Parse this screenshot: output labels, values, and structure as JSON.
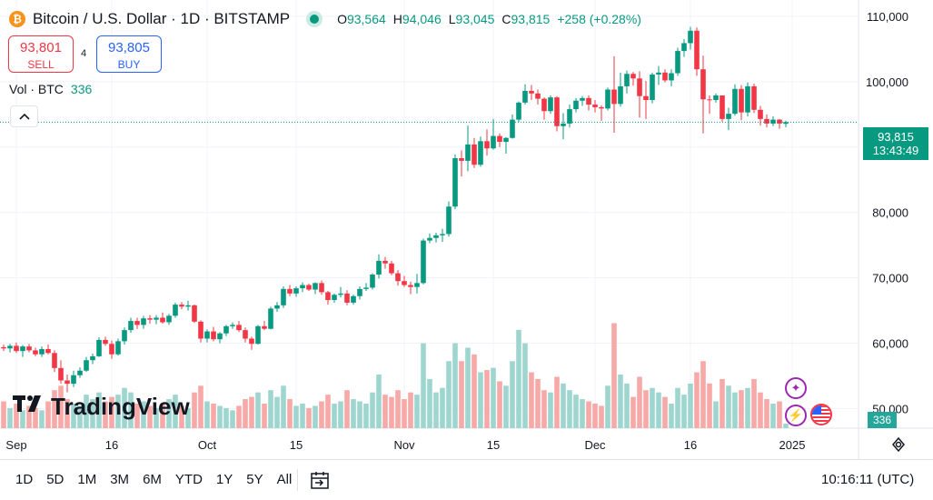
{
  "header": {
    "logo_glyph": "₿",
    "title": "Bitcoin / U.S. Dollar · 1D · BITSTAMP",
    "ohlc": {
      "o_label": "O",
      "o_value": "93,564",
      "h_label": "H",
      "h_value": "94,046",
      "l_label": "L",
      "l_value": "93,045",
      "c_label": "C",
      "c_value": "93,815",
      "change": "+258 (+0.28%)"
    }
  },
  "trade": {
    "sell_price": "93,801",
    "sell_label": "SELL",
    "spread": "4",
    "buy_price": "93,805",
    "buy_label": "BUY"
  },
  "volume_legend": {
    "label": "Vol · BTC",
    "value": "336"
  },
  "watermark": "TradingView",
  "last_price_tag": {
    "price": "93,815",
    "countdown": "13:43:49"
  },
  "volume_tag": "336",
  "ranges": [
    "1D",
    "5D",
    "1M",
    "3M",
    "6M",
    "YTD",
    "1Y",
    "5Y",
    "All"
  ],
  "clock": "10:16:11 (UTC)",
  "colors": {
    "up": "#089981",
    "down": "#f23645",
    "vol_up": "#9ed6cf",
    "vol_down": "#f7a9a7"
  },
  "chart_data": {
    "type": "candlestick",
    "title": "Bitcoin / U.S. Dollar · 1D · BITSTAMP",
    "y_axis": {
      "ticks": [
        50000,
        60000,
        70000,
        80000,
        90000,
        100000,
        110000
      ],
      "tick_labels": [
        "50,000",
        "60,000",
        "70,000",
        "80,000",
        "90,000",
        "100,000",
        "110,000"
      ],
      "range": [
        47000,
        112500
      ]
    },
    "x_axis": {
      "ticks": [
        {
          "label": "Sep",
          "index": 2
        },
        {
          "label": "16",
          "index": 17
        },
        {
          "label": "Oct",
          "index": 32
        },
        {
          "label": "15",
          "index": 46
        },
        {
          "label": "Nov",
          "index": 63
        },
        {
          "label": "15",
          "index": 77
        },
        {
          "label": "Dec",
          "index": 93
        },
        {
          "label": "16",
          "index": 108
        },
        {
          "label": "2025",
          "index": 124
        }
      ]
    },
    "last_price": 93815,
    "candles": [
      [
        59400,
        59800,
        58800,
        59200,
        12
      ],
      [
        59200,
        59900,
        58600,
        59600,
        9
      ],
      [
        59600,
        60100,
        58500,
        58800,
        11
      ],
      [
        58800,
        59700,
        57900,
        59500,
        8
      ],
      [
        59500,
        59900,
        58600,
        58900,
        10
      ],
      [
        58900,
        59300,
        58000,
        58300,
        9
      ],
      [
        58300,
        59500,
        57900,
        59100,
        8
      ],
      [
        59100,
        59800,
        58300,
        58500,
        12
      ],
      [
        58500,
        58900,
        55600,
        56200,
        17
      ],
      [
        56200,
        57400,
        53800,
        54300,
        19
      ],
      [
        54300,
        55200,
        52500,
        53800,
        13
      ],
      [
        53800,
        55800,
        53300,
        55100,
        11
      ],
      [
        55100,
        56300,
        54700,
        55800,
        10
      ],
      [
        55800,
        57900,
        55600,
        57400,
        15
      ],
      [
        57400,
        58400,
        56800,
        58000,
        13
      ],
      [
        58000,
        60900,
        57900,
        60500,
        16
      ],
      [
        60500,
        61000,
        59600,
        59900,
        12
      ],
      [
        59900,
        60400,
        57600,
        58300,
        14
      ],
      [
        58300,
        60700,
        58100,
        60300,
        15
      ],
      [
        60300,
        62400,
        59800,
        62000,
        18
      ],
      [
        62000,
        63900,
        61600,
        63400,
        16
      ],
      [
        63400,
        63900,
        62200,
        62800,
        11
      ],
      [
        62800,
        64200,
        62200,
        63800,
        12
      ],
      [
        63800,
        64300,
        63000,
        63600,
        10
      ],
      [
        63600,
        64300,
        62900,
        63900,
        9
      ],
      [
        63900,
        64700,
        63000,
        63200,
        11
      ],
      [
        63200,
        64500,
        62800,
        64200,
        13
      ],
      [
        64200,
        66200,
        63900,
        65900,
        15
      ],
      [
        65900,
        66300,
        65200,
        65600,
        10
      ],
      [
        65600,
        66500,
        65000,
        65800,
        9
      ],
      [
        65800,
        65900,
        63100,
        63300,
        16
      ],
      [
        63300,
        63500,
        60100,
        60700,
        19
      ],
      [
        60700,
        62100,
        60100,
        61800,
        12
      ],
      [
        61800,
        62500,
        60300,
        60600,
        11
      ],
      [
        60600,
        61700,
        60000,
        61500,
        10
      ],
      [
        61500,
        62800,
        61100,
        62600,
        9
      ],
      [
        62600,
        63200,
        62200,
        62800,
        8
      ],
      [
        62800,
        63400,
        61700,
        62000,
        10
      ],
      [
        62000,
        62400,
        60100,
        60700,
        13
      ],
      [
        60700,
        61000,
        59000,
        59900,
        14
      ],
      [
        59900,
        62800,
        59800,
        62600,
        16
      ],
      [
        62600,
        63400,
        62000,
        62200,
        11
      ],
      [
        62200,
        65600,
        62100,
        65300,
        17
      ],
      [
        65300,
        66300,
        64800,
        65800,
        14
      ],
      [
        65800,
        68700,
        65400,
        68300,
        19
      ],
      [
        68300,
        68900,
        67200,
        67600,
        13
      ],
      [
        67600,
        68700,
        67100,
        68400,
        10
      ],
      [
        68400,
        69300,
        67800,
        68900,
        11
      ],
      [
        68900,
        69100,
        68000,
        68200,
        9
      ],
      [
        68200,
        69300,
        67500,
        69200,
        10
      ],
      [
        69200,
        69600,
        67400,
        67800,
        12
      ],
      [
        67800,
        68000,
        65900,
        66600,
        15
      ],
      [
        66600,
        67600,
        66200,
        67400,
        11
      ],
      [
        67400,
        68600,
        67000,
        67600,
        12
      ],
      [
        67600,
        68100,
        65800,
        66200,
        17
      ],
      [
        66200,
        67400,
        65900,
        67200,
        13
      ],
      [
        67200,
        68700,
        66700,
        68300,
        12
      ],
      [
        68300,
        69200,
        68000,
        68500,
        11
      ],
      [
        68500,
        70700,
        68200,
        70500,
        16
      ],
      [
        70500,
        73600,
        69900,
        72600,
        24
      ],
      [
        72600,
        73200,
        71400,
        72200,
        15
      ],
      [
        72200,
        72600,
        70400,
        70700,
        14
      ],
      [
        70700,
        71200,
        68800,
        69500,
        17
      ],
      [
        69500,
        70300,
        68600,
        68900,
        13
      ],
      [
        68900,
        69400,
        67500,
        68600,
        16
      ],
      [
        68600,
        70600,
        67600,
        69200,
        15
      ],
      [
        69200,
        76000,
        69000,
        75700,
        38
      ],
      [
        75700,
        76800,
        75300,
        76100,
        22
      ],
      [
        76100,
        76900,
        75400,
        76500,
        16
      ],
      [
        76500,
        77500,
        75500,
        76700,
        18
      ],
      [
        76700,
        81700,
        76300,
        80900,
        30
      ],
      [
        80900,
        88900,
        80500,
        88300,
        38
      ],
      [
        88300,
        89500,
        85500,
        87900,
        30
      ],
      [
        87900,
        93300,
        86300,
        90400,
        36
      ],
      [
        90400,
        91400,
        86800,
        87300,
        33
      ],
      [
        87300,
        91600,
        87000,
        90900,
        25
      ],
      [
        90900,
        92700,
        88700,
        89800,
        26
      ],
      [
        89800,
        94300,
        89600,
        91700,
        27
      ],
      [
        91700,
        92100,
        90000,
        90800,
        21
      ],
      [
        90800,
        91500,
        89000,
        91400,
        19
      ],
      [
        91400,
        95000,
        91300,
        94200,
        30
      ],
      [
        94200,
        97000,
        93800,
        96800,
        44
      ],
      [
        96800,
        99600,
        96500,
        98600,
        38
      ],
      [
        98600,
        99500,
        97200,
        98200,
        25
      ],
      [
        98200,
        98800,
        96500,
        97400,
        22
      ],
      [
        97400,
        97600,
        94200,
        95500,
        17
      ],
      [
        95500,
        97900,
        95100,
        97600,
        16
      ],
      [
        97600,
        97800,
        92400,
        93200,
        23
      ],
      [
        93200,
        95200,
        91200,
        93600,
        20
      ],
      [
        93600,
        96500,
        93000,
        95800,
        17
      ],
      [
        95800,
        97500,
        95300,
        97100,
        15
      ],
      [
        97100,
        97800,
        96300,
        97500,
        13
      ],
      [
        97500,
        97900,
        95600,
        96500,
        12
      ],
      [
        96500,
        97200,
        95300,
        96100,
        11
      ],
      [
        96100,
        96400,
        94000,
        95900,
        10
      ],
      [
        95900,
        99100,
        95600,
        98800,
        19
      ],
      [
        98800,
        103900,
        92200,
        96600,
        47
      ],
      [
        96600,
        101400,
        96200,
        99300,
        24
      ],
      [
        99300,
        101700,
        98200,
        101200,
        20
      ],
      [
        101200,
        101500,
        99400,
        100500,
        14
      ],
      [
        100500,
        101600,
        94500,
        97800,
        23
      ],
      [
        97800,
        100100,
        94300,
        97200,
        17
      ],
      [
        97200,
        101400,
        96700,
        101100,
        18
      ],
      [
        101100,
        102400,
        99500,
        101400,
        16
      ],
      [
        101400,
        101900,
        99900,
        100200,
        14
      ],
      [
        100200,
        101900,
        99300,
        101300,
        11
      ],
      [
        101300,
        105200,
        100900,
        104700,
        18
      ],
      [
        104700,
        106500,
        103800,
        105900,
        15
      ],
      [
        105900,
        108400,
        104900,
        107800,
        20
      ],
      [
        107800,
        108300,
        100900,
        101900,
        25
      ],
      [
        101900,
        104000,
        92100,
        97300,
        30
      ],
      [
        97300,
        97900,
        95100,
        97200,
        20
      ],
      [
        97200,
        98200,
        96800,
        97900,
        12
      ],
      [
        97900,
        97900,
        93900,
        94300,
        22
      ],
      [
        94300,
        96000,
        92600,
        95100,
        19
      ],
      [
        95100,
        99600,
        94800,
        98900,
        16
      ],
      [
        98900,
        99500,
        94100,
        95300,
        17
      ],
      [
        95300,
        99900,
        94700,
        99300,
        18
      ],
      [
        99300,
        99700,
        95200,
        95700,
        22
      ],
      [
        95700,
        96300,
        93300,
        94300,
        16
      ],
      [
        94300,
        95000,
        93000,
        93600,
        13
      ],
      [
        93600,
        94700,
        93200,
        94200,
        11
      ],
      [
        94200,
        94300,
        92800,
        93600,
        12
      ],
      [
        93564,
        94046,
        93045,
        93815,
        2
      ]
    ]
  }
}
